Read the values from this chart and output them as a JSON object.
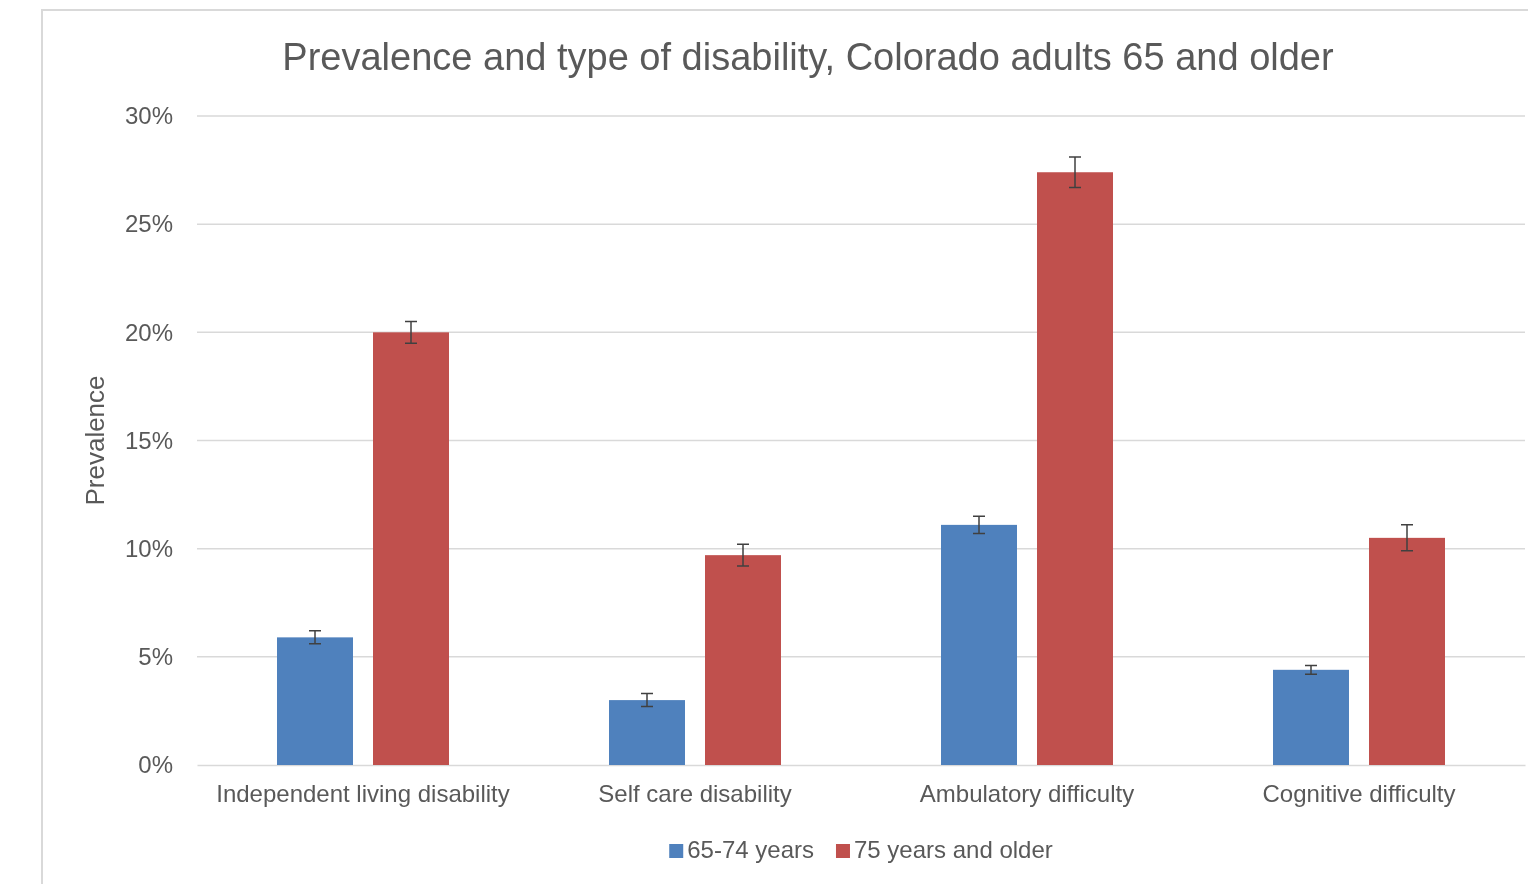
{
  "chart_data": {
    "type": "bar",
    "title": "Prevalence and type of disability, Colorado adults 65 and older",
    "ylabel": "Prevalence",
    "categories": [
      "Independent living disability",
      "Self care disability",
      "Ambulatory difficulty",
      "Cognitive difficulty"
    ],
    "series": [
      {
        "name": "65-74 years",
        "color": "#4f81bd",
        "values": [
          5.9,
          3.0,
          11.1,
          4.4
        ],
        "errors": [
          0.3,
          0.3,
          0.4,
          0.2
        ]
      },
      {
        "name": "75 years and older",
        "color": "#c0504d",
        "values": [
          20.0,
          9.7,
          27.4,
          10.5
        ],
        "errors": [
          0.5,
          0.5,
          0.7,
          0.6
        ]
      }
    ],
    "ylim": [
      0,
      30
    ],
    "yticks": [
      {
        "value": 0,
        "label": "0%"
      },
      {
        "value": 5,
        "label": "5%"
      },
      {
        "value": 10,
        "label": "10%"
      },
      {
        "value": 15,
        "label": "15%"
      },
      {
        "value": 20,
        "label": "20%"
      },
      {
        "value": 25,
        "label": "25%"
      },
      {
        "value": 30,
        "label": "30%"
      }
    ],
    "grid": "y",
    "legend": "bottom"
  }
}
